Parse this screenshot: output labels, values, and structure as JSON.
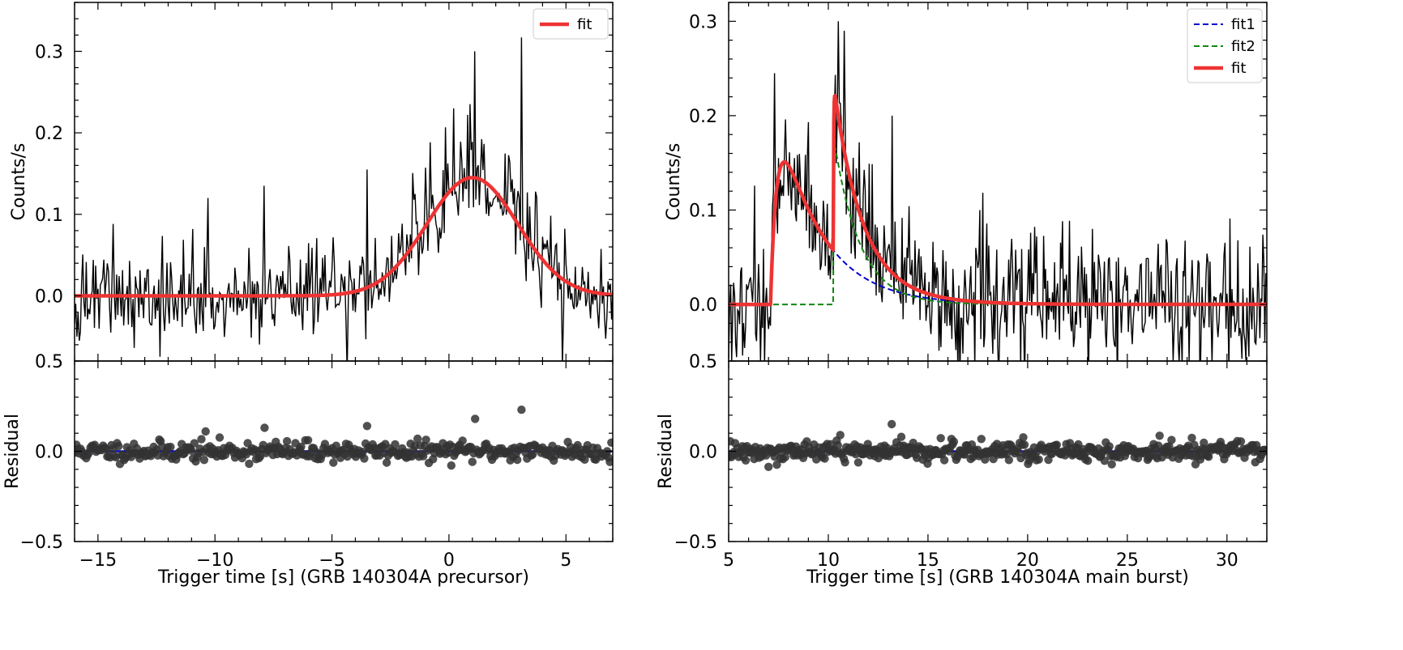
{
  "chart_data": [
    {
      "type": "line",
      "panel": "precursor",
      "title": "",
      "xlabel": "Trigger time [s] (GRB 140304A precursor)",
      "ylabel": "Counts/s",
      "xlim": [
        -16,
        7
      ],
      "ylim": [
        -0.08,
        0.36
      ],
      "xticks": [
        -15,
        -10,
        -5,
        0,
        5
      ],
      "xtick_labels": [
        "−15",
        "−10",
        "−5",
        "0",
        "5"
      ],
      "yticks": [
        0.0,
        0.1,
        0.2,
        0.3
      ],
      "ytick_labels": [
        "0.0",
        "0.1",
        "0.2",
        "0.3"
      ],
      "ybottom_label": "0.5",
      "legend": {
        "placement": "top-right",
        "entries": [
          {
            "label": "fit",
            "color": "#ee3333",
            "style": "solid"
          }
        ]
      },
      "series": [
        {
          "name": "",
          "kind": "light curve",
          "color": "#000000",
          "bin": 0.05,
          "x_start": -16,
          "seed": 1,
          "noise_sd": 0.03,
          "shape": "gaussian",
          "shape_params": {
            "amp": 0.145,
            "center": 1.0,
            "sigma": 1.95
          },
          "spikes": [
            {
              "x": -10.3,
              "y": 0.12
            },
            {
              "x": -7.9,
              "y": 0.135
            },
            {
              "x": -3.5,
              "y": 0.155
            },
            {
              "x": 0.2,
              "y": 0.23
            },
            {
              "x": 1.1,
              "y": 0.3
            },
            {
              "x": 3.1,
              "y": 0.317
            }
          ]
        },
        {
          "name": "fit",
          "kind": "fit",
          "color": "#ee3333",
          "function": "gaussian",
          "params": {
            "amp": 0.145,
            "center": 1.0,
            "sigma": 1.95
          }
        }
      ],
      "residual": {
        "ylabel": "Residual",
        "ylim": [
          -0.5,
          0.5
        ],
        "yticks": [
          -0.5,
          0.0,
          0.5
        ],
        "ytick_labels": [
          "−0.5",
          "0.0",
          ""
        ],
        "points_color": "#333333",
        "points_noise_sd": 0.028,
        "seed": 11,
        "step": 0.06,
        "outliers": [
          {
            "x": -10.4,
            "y": 0.11
          },
          {
            "x": -7.9,
            "y": 0.13
          },
          {
            "x": -3.5,
            "y": 0.14
          },
          {
            "x": 1.1,
            "y": 0.18
          },
          {
            "x": 3.1,
            "y": 0.23
          }
        ],
        "baseline_color": "#0000cc"
      }
    },
    {
      "type": "line",
      "panel": "main burst",
      "title": "",
      "xlabel": "Trigger time [s] (GRB 140304A main burst)",
      "ylabel": "Counts/s",
      "xlim": [
        5,
        32
      ],
      "ylim": [
        -0.06,
        0.32
      ],
      "xticks": [
        5,
        10,
        15,
        20,
        25,
        30
      ],
      "xtick_labels": [
        "5",
        "10",
        "15",
        "20",
        "25",
        "30"
      ],
      "yticks": [
        0.0,
        0.1,
        0.2,
        0.3
      ],
      "ytick_labels": [
        "0.0",
        "0.1",
        "0.2",
        "0.3"
      ],
      "ybottom_label": "0.5",
      "legend": {
        "placement": "top-right",
        "entries": [
          {
            "label": "fit1",
            "color": "#0000cc",
            "style": "dashed"
          },
          {
            "label": "fit2",
            "color": "#118811",
            "style": "dashed"
          },
          {
            "label": "fit",
            "color": "#ee3333",
            "style": "solid"
          }
        ]
      },
      "series": [
        {
          "name": "",
          "kind": "light curve",
          "color": "#000000",
          "bin": 0.05,
          "x_start": 5,
          "seed": 2,
          "noise_sd": 0.035,
          "shape": "two-pulse",
          "spikes": [
            {
              "x": 7.3,
              "y": 0.245
            },
            {
              "x": 10.5,
              "y": 0.3
            },
            {
              "x": 10.8,
              "y": 0.29
            },
            {
              "x": 13.2,
              "y": 0.2
            },
            {
              "x": 17.6,
              "y": 0.1
            }
          ]
        },
        {
          "name": "fit1",
          "kind": "fit",
          "color": "#0000cc",
          "function": "fred",
          "params": {
            "t0": 7.1,
            "amp": 0.24,
            "rise": 0.35,
            "decay": 2.2
          }
        },
        {
          "name": "fit2",
          "kind": "fit",
          "color": "#118811",
          "function": "fred",
          "params": {
            "t0": 10.25,
            "amp": 0.18,
            "rise": 0.02,
            "decay": 1.3
          }
        },
        {
          "name": "fit",
          "kind": "fit",
          "color": "#ee3333",
          "function": "sum",
          "components": [
            "fit1",
            "fit2"
          ]
        }
      ],
      "residual": {
        "ylabel": "Residual",
        "ylim": [
          -0.5,
          0.5
        ],
        "yticks": [
          -0.5,
          0.0,
          0.5
        ],
        "ytick_labels": [
          "−0.5",
          "0.0",
          ""
        ],
        "points_color": "#333333",
        "points_noise_sd": 0.028,
        "seed": 12,
        "step": 0.06,
        "outliers": [
          {
            "x": 13.2,
            "y": 0.15
          },
          {
            "x": 10.6,
            "y": 0.09
          }
        ],
        "baseline_color": "#0000cc"
      }
    }
  ]
}
